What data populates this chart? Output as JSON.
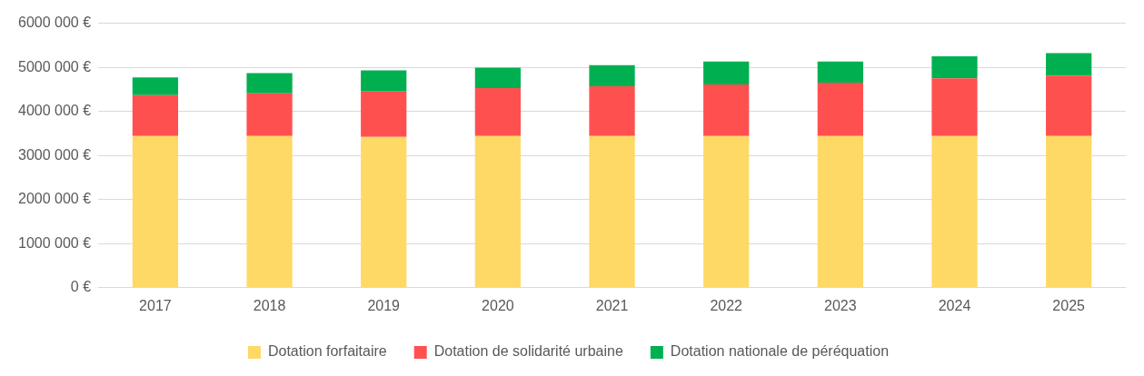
{
  "chart_data": {
    "type": "bar",
    "stacked": true,
    "categories": [
      "2017",
      "2018",
      "2019",
      "2020",
      "2021",
      "2022",
      "2023",
      "2024",
      "2025"
    ],
    "series": [
      {
        "name": "Dotation forfaitaire",
        "color": "#ffd966",
        "values": [
          3440000,
          3440000,
          3420000,
          3440000,
          3440000,
          3440000,
          3440000,
          3440000,
          3440000
        ]
      },
      {
        "name": "Dotation de solidarité urbaine",
        "color": "#ff5050",
        "values": [
          930000,
          970000,
          1030000,
          1090000,
          1130000,
          1170000,
          1210000,
          1310000,
          1370000
        ]
      },
      {
        "name": "Dotation nationale de péréquation",
        "color": "#00b050",
        "values": [
          400000,
          460000,
          480000,
          460000,
          480000,
          520000,
          480000,
          500000,
          510000
        ]
      }
    ],
    "ylim": [
      0,
      6000000
    ],
    "yticks": [
      {
        "value": 0,
        "label": "0 €"
      },
      {
        "value": 1000000,
        "label": "1000 000 €"
      },
      {
        "value": 2000000,
        "label": "2000 000 €"
      },
      {
        "value": 3000000,
        "label": "3000 000 €"
      },
      {
        "value": 4000000,
        "label": "4000 000 €"
      },
      {
        "value": 5000000,
        "label": "5000 000 €"
      },
      {
        "value": 6000000,
        "label": "6000 000 €"
      }
    ],
    "grid": "y",
    "legend": "bottom"
  }
}
